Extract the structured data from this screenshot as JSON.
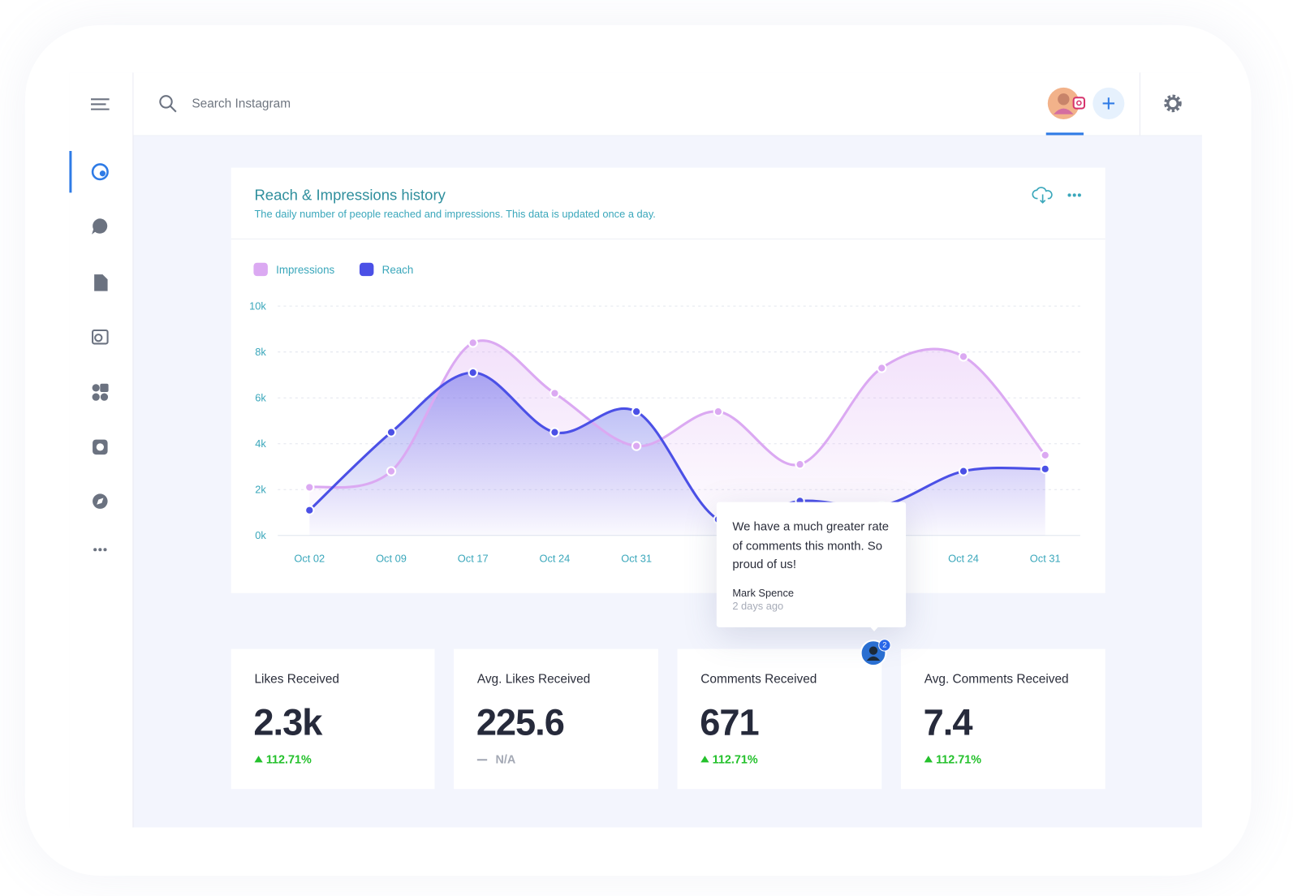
{
  "header": {
    "search_placeholder": "Search Instagram"
  },
  "chart_card": {
    "title": "Reach & Impressions history",
    "subtitle": "The daily number of people reached and impressions. This data is updated once a day."
  },
  "chart_data": {
    "type": "line",
    "categories": [
      "Oct 02",
      "Oct 09",
      "Oct 17",
      "Oct 24",
      "Oct 31",
      null,
      null,
      null,
      "Oct 24",
      "Oct 31"
    ],
    "series": [
      {
        "name": "Impressions",
        "color": "#dba9f2",
        "values": [
          2100,
          2800,
          8400,
          6200,
          3900,
          5400,
          3100,
          7300,
          7800,
          3500
        ]
      },
      {
        "name": "Reach",
        "color": "#4b50e6",
        "values": [
          1100,
          4500,
          7100,
          4500,
          5400,
          700,
          1500,
          1300,
          2800,
          2900
        ]
      }
    ],
    "ylim": [
      0,
      10000
    ],
    "yticks": [
      {
        "value": 0,
        "label": "0k"
      },
      {
        "value": 2000,
        "label": "2k"
      },
      {
        "value": 4000,
        "label": "4k"
      },
      {
        "value": 6000,
        "label": "6k"
      },
      {
        "value": 8000,
        "label": "8k"
      },
      {
        "value": 10000,
        "label": "10k"
      }
    ],
    "grid": true
  },
  "comment": {
    "text": "We have a much greater rate of comments this month. So proud of us!",
    "author": "Mark Spence",
    "time": "2 days ago",
    "count": "2"
  },
  "stats": [
    {
      "label": "Likes Received",
      "value": "2.3k",
      "change": "112.71%",
      "trend": "up"
    },
    {
      "label": "Avg. Likes Received",
      "value": "225.6",
      "change": "N/A",
      "trend": "flat"
    },
    {
      "label": "Comments Received",
      "value": "671",
      "change": "112.71%",
      "trend": "up"
    },
    {
      "label": "Avg. Comments Received",
      "value": "7.4",
      "change": "112.71%",
      "trend": "up"
    }
  ]
}
